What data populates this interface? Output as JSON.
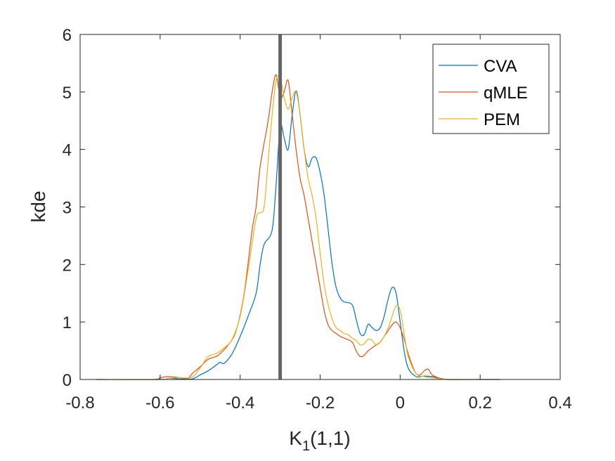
{
  "chart_data": {
    "type": "line",
    "title": "",
    "xlabel": "K",
    "xlabel_subscript": "1",
    "xlabel_suffix": "(1,1)",
    "ylabel": "kde",
    "xlim": [
      -0.8,
      0.4
    ],
    "ylim": [
      0,
      6
    ],
    "xticks": [
      -0.8,
      -0.6,
      -0.4,
      -0.2,
      0,
      0.2,
      0.4
    ],
    "xtick_labels": [
      "-0.8",
      "-0.6",
      "-0.4",
      "-0.2",
      "0",
      "0.2",
      "0.4"
    ],
    "yticks": [
      0,
      1,
      2,
      3,
      4,
      5,
      6
    ],
    "ytick_labels": [
      "0",
      "1",
      "2",
      "3",
      "4",
      "5",
      "6"
    ],
    "grid": false,
    "legend_position": "top-right",
    "reference_line": {
      "x": -0.3,
      "color": "#666666"
    },
    "series": [
      {
        "name": "CVA",
        "color": "#0072BD",
        "x": [
          -0.76,
          -0.6,
          -0.58,
          -0.55,
          -0.52,
          -0.5,
          -0.48,
          -0.46,
          -0.45,
          -0.44,
          -0.42,
          -0.4,
          -0.38,
          -0.36,
          -0.35,
          -0.34,
          -0.32,
          -0.31,
          -0.3,
          -0.29,
          -0.28,
          -0.27,
          -0.26,
          -0.25,
          -0.24,
          -0.23,
          -0.22,
          -0.21,
          -0.2,
          -0.19,
          -0.18,
          -0.17,
          -0.16,
          -0.15,
          -0.14,
          -0.12,
          -0.11,
          -0.1,
          -0.09,
          -0.08,
          -0.07,
          -0.06,
          -0.05,
          -0.04,
          -0.03,
          -0.02,
          -0.01,
          0,
          0.01,
          0.02,
          0.04,
          0.06,
          0.08,
          0.1,
          0.12,
          0.2,
          0.25
        ],
        "y": [
          0,
          0,
          0.02,
          0.01,
          0.01,
          0.08,
          0.15,
          0.25,
          0.3,
          0.28,
          0.45,
          0.75,
          1.1,
          1.5,
          2.0,
          2.35,
          2.6,
          3.4,
          4.4,
          4.2,
          4.0,
          4.6,
          5.02,
          4.6,
          4.0,
          3.7,
          3.85,
          3.85,
          3.6,
          3.2,
          2.6,
          2.0,
          1.6,
          1.42,
          1.35,
          1.3,
          1.05,
          0.8,
          0.78,
          0.96,
          0.9,
          0.85,
          0.9,
          1.1,
          1.4,
          1.6,
          1.5,
          1.0,
          0.5,
          0.2,
          0.05,
          0.06,
          0.05,
          0.02,
          0,
          0,
          0
        ]
      },
      {
        "name": "qMLE",
        "color": "#D95319",
        "x": [
          -0.76,
          -0.62,
          -0.6,
          -0.58,
          -0.55,
          -0.53,
          -0.52,
          -0.5,
          -0.48,
          -0.46,
          -0.45,
          -0.43,
          -0.41,
          -0.39,
          -0.37,
          -0.36,
          -0.35,
          -0.33,
          -0.32,
          -0.31,
          -0.3,
          -0.29,
          -0.28,
          -0.27,
          -0.26,
          -0.25,
          -0.24,
          -0.23,
          -0.22,
          -0.21,
          -0.2,
          -0.19,
          -0.18,
          -0.17,
          -0.16,
          -0.15,
          -0.14,
          -0.12,
          -0.11,
          -0.1,
          -0.09,
          -0.08,
          -0.07,
          -0.06,
          -0.05,
          -0.04,
          -0.03,
          -0.02,
          -0.01,
          0,
          0.01,
          0.02,
          0.03,
          0.04,
          0.05,
          0.06,
          0.07,
          0.08,
          0.1,
          0.12,
          0.2,
          0.25
        ],
        "y": [
          0,
          0,
          0.03,
          0.05,
          0.03,
          0.02,
          0.1,
          0.22,
          0.35,
          0.4,
          0.45,
          0.6,
          0.85,
          1.5,
          2.6,
          3.0,
          3.7,
          4.5,
          5.0,
          5.3,
          4.9,
          5.0,
          5.2,
          4.6,
          4.0,
          3.5,
          3.2,
          2.8,
          2.4,
          2.0,
          1.6,
          1.2,
          0.95,
          0.85,
          0.8,
          0.75,
          0.72,
          0.65,
          0.5,
          0.4,
          0.42,
          0.5,
          0.55,
          0.6,
          0.65,
          0.75,
          0.85,
          0.95,
          1.0,
          0.9,
          0.7,
          0.45,
          0.25,
          0.1,
          0.08,
          0.15,
          0.18,
          0.08,
          0.02,
          0,
          0,
          0
        ]
      },
      {
        "name": "PEM",
        "color": "#EDB120",
        "x": [
          -0.76,
          -0.6,
          -0.58,
          -0.55,
          -0.52,
          -0.5,
          -0.48,
          -0.46,
          -0.44,
          -0.42,
          -0.4,
          -0.38,
          -0.36,
          -0.35,
          -0.34,
          -0.33,
          -0.32,
          -0.31,
          -0.3,
          -0.29,
          -0.28,
          -0.27,
          -0.26,
          -0.25,
          -0.24,
          -0.23,
          -0.22,
          -0.21,
          -0.2,
          -0.19,
          -0.18,
          -0.17,
          -0.16,
          -0.15,
          -0.14,
          -0.13,
          -0.12,
          -0.11,
          -0.1,
          -0.09,
          -0.08,
          -0.07,
          -0.06,
          -0.05,
          -0.04,
          -0.03,
          -0.02,
          -0.01,
          0,
          0.01,
          0.02,
          0.04,
          0.06,
          0.08,
          0.1,
          0.12,
          0.2,
          0.25
        ],
        "y": [
          0,
          0,
          0.02,
          0.03,
          0.04,
          0.2,
          0.4,
          0.45,
          0.55,
          0.7,
          1.1,
          1.9,
          2.8,
          2.9,
          3.0,
          3.8,
          4.6,
          5.2,
          5.25,
          4.9,
          4.7,
          4.9,
          5.0,
          4.6,
          4.0,
          3.5,
          3.2,
          2.8,
          2.2,
          1.65,
          1.3,
          1.05,
          0.9,
          0.85,
          0.8,
          0.78,
          0.72,
          0.68,
          0.6,
          0.62,
          0.7,
          0.68,
          0.6,
          0.65,
          0.75,
          0.9,
          1.1,
          1.28,
          1.2,
          0.8,
          0.4,
          0.1,
          0.05,
          0.03,
          0.01,
          0,
          0,
          0
        ]
      }
    ]
  }
}
